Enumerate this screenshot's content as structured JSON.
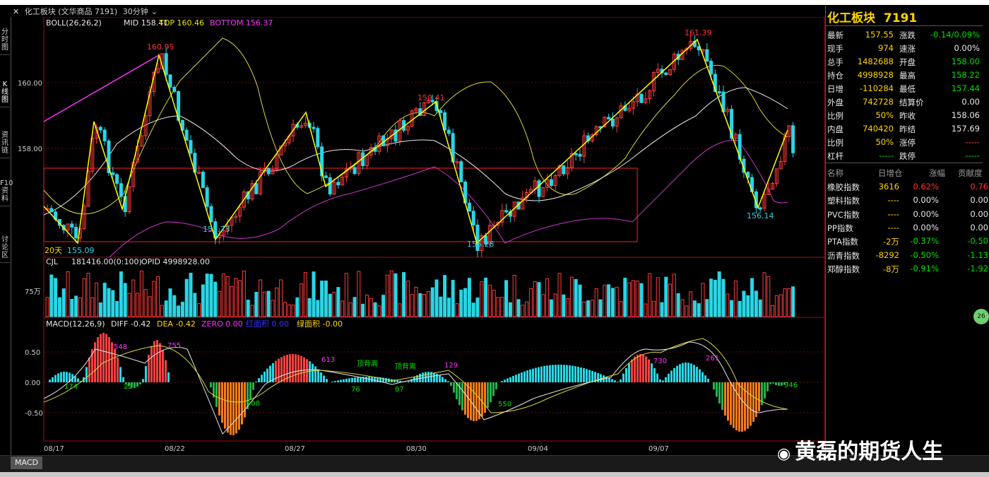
{
  "window": {
    "title": "化工板块 (文华商品 7191)",
    "period": "30分钟",
    "close_icon": "close-icon",
    "dropdown_icon": "chevron-down-icon"
  },
  "left_rail": [
    "分时图",
    "K线图",
    "资讯链",
    "F10资料",
    "讨论区"
  ],
  "main_chart": {
    "boll_label": "BOLL(26,26,2)",
    "mid_label": "MID 158.41",
    "top_label": "TOP 160.46",
    "bottom_label": "BOTTOM 156.37",
    "y_ticks": [
      "160.00",
      "158.00"
    ],
    "period_tag": "20天",
    "annotations": [
      "160.95",
      "155.09",
      "155.73",
      "159.41",
      "155.28",
      "161.39",
      "156.14"
    ],
    "colors": {
      "up": "#ff3b3b",
      "down": "#29d6e6",
      "boll_upper": "#d7d43f",
      "boll_mid": "#e6e6e6",
      "boll_lower": "#cc33cc",
      "trend": "#ffff00",
      "magenta_line": "#ff33ff",
      "box": "#ff2020"
    }
  },
  "volume_chart": {
    "cjl_label": "CJL",
    "volume_value": "181416.00(0:100)",
    "opid_label": "OPID 4998928.00",
    "y_tick": "75万"
  },
  "macd_chart": {
    "label": "MACD(12,26,9)",
    "diff": "DIFF -0.42",
    "dea": "DEA -0.42",
    "zero": "ZERO 0.00",
    "red_area": "红面积 0.00",
    "green_area": "绿面积 -0.00",
    "y_ticks": [
      "0.50",
      "0.00",
      "-0.50"
    ],
    "annotations": [
      "548",
      "755",
      "613",
      "顶背离",
      "顶背离",
      "129",
      "730",
      "261",
      "174",
      "22",
      "908",
      "76",
      "87",
      "550",
      "946"
    ]
  },
  "x_axis": [
    "08/17",
    "08/22",
    "08/27",
    "08/30",
    "09/04",
    "09/07"
  ],
  "right_panel": {
    "name": "化工板块",
    "code": "7191",
    "quotes": [
      {
        "l1": "最新",
        "v1": "157.55",
        "l2": "涨跌",
        "v2": "-0.14/0.09%"
      },
      {
        "l1": "现手",
        "v1": "974",
        "l2": "速涨",
        "v2": "0.00%"
      },
      {
        "l1": "总手",
        "v1": "1482688",
        "l2": "开盘",
        "v2": "158.00"
      },
      {
        "l1": "持仓",
        "v1": "4998928",
        "l2": "最高",
        "v2": "158.22"
      },
      {
        "l1": "日增",
        "v1": "-110284",
        "l2": "最低",
        "v2": "157.44"
      },
      {
        "l1": "外盘",
        "v1": "742728",
        "l2": "结算价",
        "v2": "0.00"
      },
      {
        "l1": "比例",
        "v1": "50%",
        "l2": "昨收",
        "v2": "158.06"
      },
      {
        "l1": "内盘",
        "v1": "740420",
        "l2": "昨结",
        "v2": "157.69"
      },
      {
        "l1": "比例",
        "v1": "50%",
        "l2": "涨停",
        "v2": "-----"
      },
      {
        "l1": "杠杆",
        "v1": "-----",
        "l2": "跌停",
        "v2": "-----"
      }
    ],
    "table_headers": [
      "名称",
      "日增仓",
      "涨幅",
      "贡献度"
    ],
    "table_rows": [
      {
        "name": "橡胶指数",
        "inc": "3616",
        "chg": "0.62%",
        "contrib": "0.76"
      },
      {
        "name": "塑料指数",
        "inc": "----",
        "chg": "0.00%",
        "contrib": "0.00"
      },
      {
        "name": "PVC指数",
        "inc": "----",
        "chg": "0.00%",
        "contrib": "0.00"
      },
      {
        "name": "PP指数",
        "inc": "----",
        "chg": "0.00%",
        "contrib": "0.00"
      },
      {
        "name": "PTA指数",
        "inc": "-2万",
        "chg": "-0.37%",
        "contrib": "-0.50"
      },
      {
        "name": "沥青指数",
        "inc": "-8292",
        "chg": "-0.50%",
        "contrib": "-1.13"
      },
      {
        "name": "郑醇指数",
        "inc": "-8万",
        "chg": "-0.91%",
        "contrib": "-1.92"
      }
    ]
  },
  "bottom": {
    "tab": "MACD",
    "watermark": "黄磊的期货人生",
    "badge": "26"
  }
}
